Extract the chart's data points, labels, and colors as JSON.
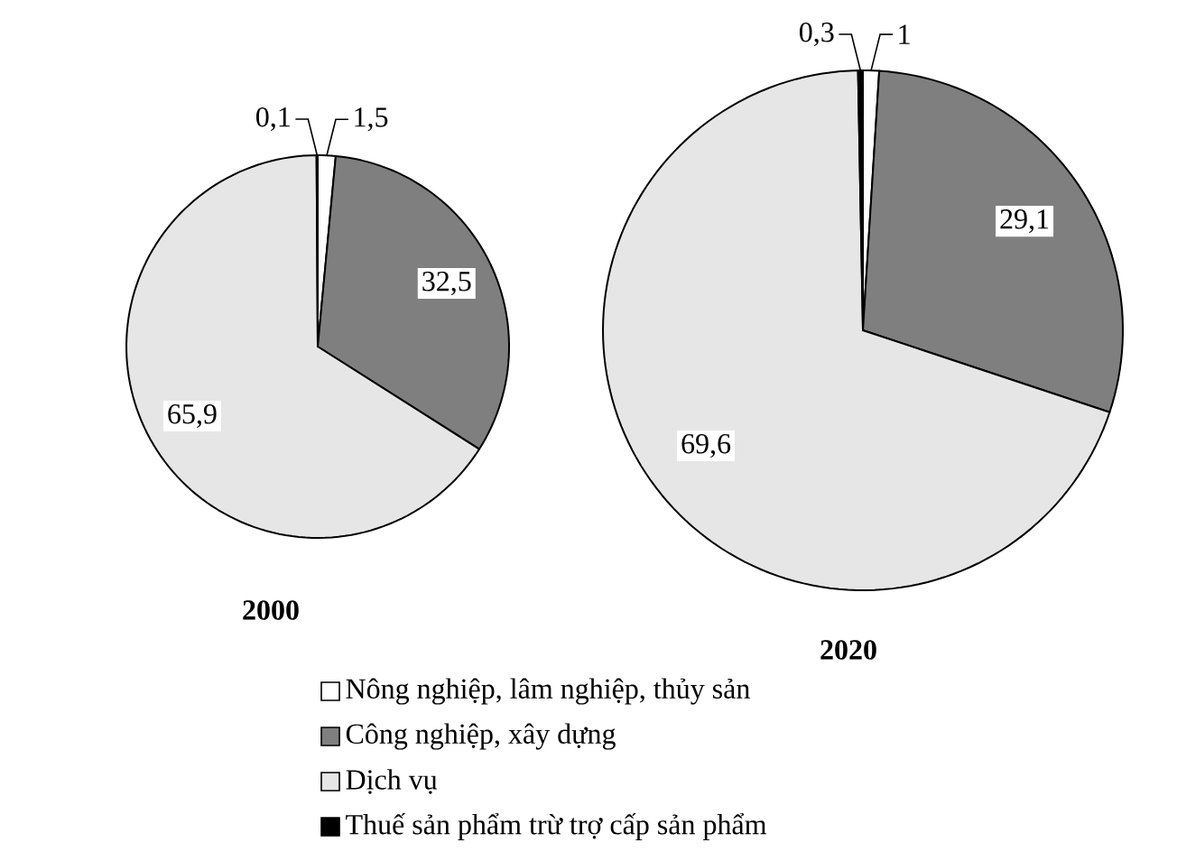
{
  "chart_data": [
    {
      "type": "pie",
      "title": "2000",
      "categories": [
        "Nông nghiệp,  lâm nghiệp, thủy sản",
        "Công nghiệp, xây dựng",
        "Dịch vụ",
        "Thuế sản phẩm trừ trợ cấp sản phẩm"
      ],
      "values": [
        1.5,
        32.5,
        65.9,
        0.1
      ],
      "colors": [
        "#ffffff",
        "#7f7f7f",
        "#e6e6e6",
        "#000000"
      ],
      "value_labels": [
        "1,5",
        "32,5",
        "65,9",
        "0,1"
      ],
      "legend": "bottom"
    },
    {
      "type": "pie",
      "title": "2020",
      "categories": [
        null,
        null,
        null,
        null
      ],
      "values": [
        1,
        29.1,
        69.6,
        0.3
      ],
      "colors": [
        "#ffffff",
        "#7f7f7f",
        "#e6e6e6",
        "#000000"
      ],
      "value_labels": [
        "1",
        "29,1",
        "69,6",
        "0,3"
      ]
    }
  ]
}
